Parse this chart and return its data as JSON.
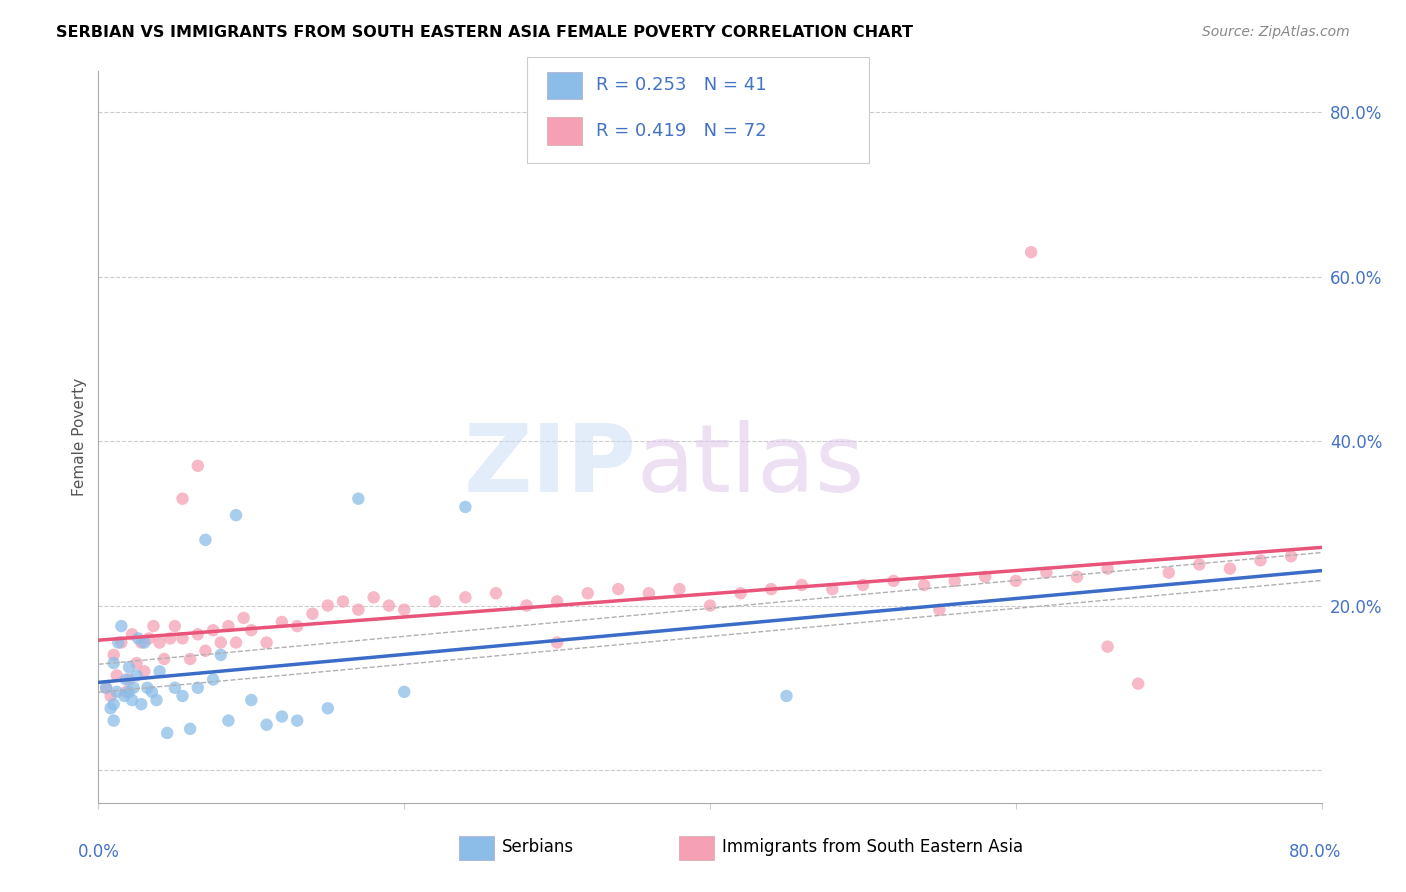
{
  "title": "SERBIAN VS IMMIGRANTS FROM SOUTH EASTERN ASIA FEMALE POVERTY CORRELATION CHART",
  "source": "Source: ZipAtlas.com",
  "ylabel": "Female Poverty",
  "xlim": [
    0.0,
    0.8
  ],
  "ylim": [
    -0.04,
    0.85
  ],
  "legend_r1": "R = 0.253",
  "legend_n1": "N = 41",
  "legend_r2": "R = 0.419",
  "legend_n2": "N = 72",
  "color_serbian": "#8BBDE8",
  "color_immigrant": "#F5A0B5",
  "color_line_serbian": "#3B6CC8",
  "color_line_immigrant": "#E8547A",
  "serbians_x": [
    0.005,
    0.008,
    0.01,
    0.01,
    0.01,
    0.012,
    0.013,
    0.015,
    0.017,
    0.018,
    0.02,
    0.02,
    0.022,
    0.023,
    0.025,
    0.026,
    0.028,
    0.03,
    0.032,
    0.035,
    0.038,
    0.04,
    0.045,
    0.05,
    0.055,
    0.06,
    0.065,
    0.07,
    0.075,
    0.08,
    0.085,
    0.09,
    0.1,
    0.11,
    0.12,
    0.13,
    0.15,
    0.17,
    0.2,
    0.24,
    0.45
  ],
  "serbians_y": [
    0.1,
    0.075,
    0.06,
    0.08,
    0.13,
    0.095,
    0.155,
    0.175,
    0.09,
    0.11,
    0.095,
    0.125,
    0.085,
    0.1,
    0.115,
    0.16,
    0.08,
    0.155,
    0.1,
    0.095,
    0.085,
    0.12,
    0.045,
    0.1,
    0.09,
    0.05,
    0.1,
    0.28,
    0.11,
    0.14,
    0.06,
    0.31,
    0.085,
    0.055,
    0.065,
    0.06,
    0.075,
    0.33,
    0.095,
    0.32,
    0.09
  ],
  "immigrants_x": [
    0.005,
    0.008,
    0.01,
    0.012,
    0.015,
    0.018,
    0.02,
    0.022,
    0.025,
    0.028,
    0.03,
    0.033,
    0.036,
    0.04,
    0.043,
    0.047,
    0.05,
    0.055,
    0.06,
    0.065,
    0.07,
    0.075,
    0.08,
    0.085,
    0.09,
    0.095,
    0.1,
    0.11,
    0.12,
    0.13,
    0.14,
    0.15,
    0.16,
    0.17,
    0.18,
    0.19,
    0.2,
    0.22,
    0.24,
    0.26,
    0.28,
    0.3,
    0.32,
    0.34,
    0.36,
    0.38,
    0.4,
    0.42,
    0.44,
    0.46,
    0.48,
    0.5,
    0.52,
    0.54,
    0.56,
    0.58,
    0.6,
    0.62,
    0.64,
    0.66,
    0.68,
    0.7,
    0.72,
    0.74,
    0.76,
    0.78,
    0.055,
    0.065,
    0.3,
    0.55,
    0.61,
    0.66
  ],
  "immigrants_y": [
    0.1,
    0.09,
    0.14,
    0.115,
    0.155,
    0.095,
    0.11,
    0.165,
    0.13,
    0.155,
    0.12,
    0.16,
    0.175,
    0.155,
    0.135,
    0.16,
    0.175,
    0.16,
    0.135,
    0.165,
    0.145,
    0.17,
    0.155,
    0.175,
    0.155,
    0.185,
    0.17,
    0.155,
    0.18,
    0.175,
    0.19,
    0.2,
    0.205,
    0.195,
    0.21,
    0.2,
    0.195,
    0.205,
    0.21,
    0.215,
    0.2,
    0.205,
    0.215,
    0.22,
    0.215,
    0.22,
    0.2,
    0.215,
    0.22,
    0.225,
    0.22,
    0.225,
    0.23,
    0.225,
    0.23,
    0.235,
    0.23,
    0.24,
    0.235,
    0.245,
    0.105,
    0.24,
    0.25,
    0.245,
    0.255,
    0.26,
    0.33,
    0.37,
    0.155,
    0.195,
    0.63,
    0.15
  ]
}
